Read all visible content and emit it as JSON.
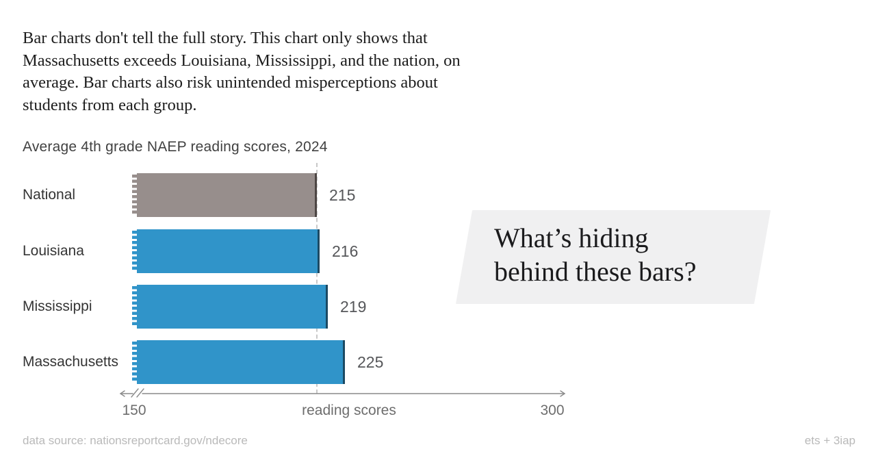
{
  "intro": {
    "lines": [
      "Bar charts don't tell the full story. This chart only shows that",
      "Massachusetts exceeds Louisiana, Mississippi, and the nation, on",
      "average. Bar charts also risk unintended misperceptions about",
      "students from each group."
    ]
  },
  "chart_data": {
    "type": "bar",
    "orientation": "horizontal",
    "title": "Average 4th grade NAEP reading scores, 2024",
    "categories": [
      "National",
      "Louisiana",
      "Mississippi",
      "Massachusetts"
    ],
    "values": [
      215,
      216,
      219,
      225
    ],
    "colors": [
      "#978e8c",
      "#3094c9",
      "#3094c9",
      "#3094c9"
    ],
    "edge_colors": [
      "#4d4644",
      "#1c4a63",
      "#1c4a63",
      "#1c4a63"
    ],
    "xlabel": "reading scores",
    "xlim": [
      150,
      300
    ],
    "ticks": [
      "150",
      "300"
    ],
    "axis_break": true,
    "reference_line_value": 215,
    "grid": false,
    "legend": false
  },
  "callout": {
    "line1": "What’s hiding",
    "line2": "behind these bars?"
  },
  "footer": {
    "left": "data source: nationsreportcard.gov/ndecore",
    "right": "ets + 3iap"
  }
}
